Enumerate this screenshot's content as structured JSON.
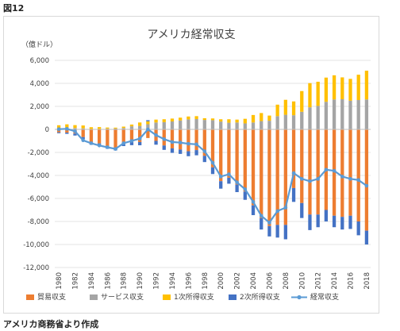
{
  "figure_label": "図12",
  "source_note": "アメリカ商務省より作成",
  "chart_data": {
    "type": "bar",
    "stacked": true,
    "title": "アメリカ経常収支",
    "unit_label": "（億ドル）",
    "xlabel": "",
    "ylabel": "",
    "ylim": [
      -12000,
      6000
    ],
    "yticks": [
      -12000,
      -10000,
      -8000,
      -6000,
      -4000,
      -2000,
      0,
      2000,
      4000,
      6000
    ],
    "ytick_labels": [
      "-12,000",
      "-10,000",
      "-8,000",
      "-6,000",
      "-4,000",
      "-2,000",
      "0",
      "2,000",
      "4,000",
      "6,000"
    ],
    "grid": true,
    "legend_position": "bottom",
    "categories": [
      1980,
      1981,
      1982,
      1983,
      1984,
      1985,
      1986,
      1987,
      1988,
      1989,
      1990,
      1991,
      1992,
      1993,
      1994,
      1995,
      1996,
      1997,
      1998,
      1999,
      2000,
      2001,
      2002,
      2003,
      2004,
      2005,
      2006,
      2007,
      2008,
      2009,
      2010,
      2011,
      2012,
      2013,
      2014,
      2015,
      2016,
      2017,
      2018
    ],
    "x_tick_labels": [
      "1980",
      "1982",
      "1984",
      "1986",
      "1988",
      "1990",
      "1992",
      "1994",
      "1996",
      "1998",
      "2000",
      "2002",
      "2004",
      "2006",
      "2008",
      "2010",
      "2012",
      "2014",
      "2016",
      "2018"
    ],
    "series": [
      {
        "name": "貿易収支",
        "kind": "bar",
        "color": "#ED7D31",
        "values": [
          -255,
          -280,
          -365,
          -670,
          -1125,
          -1220,
          -1450,
          -1600,
          -1200,
          -1100,
          -1100,
          -750,
          -1000,
          -1400,
          -1650,
          -1750,
          -1900,
          -1800,
          -2300,
          -3300,
          -4500,
          -4200,
          -4800,
          -5400,
          -6600,
          -7700,
          -8400,
          -8300,
          -8300,
          -5100,
          -6400,
          -7400,
          -7400,
          -7000,
          -7500,
          -7600,
          -7500,
          -8000,
          -8800
        ]
      },
      {
        "name": "サービス収支",
        "kind": "bar",
        "color": "#A5A5A5",
        "values": [
          60,
          120,
          120,
          90,
          10,
          0,
          60,
          70,
          120,
          270,
          300,
          450,
          600,
          630,
          690,
          770,
          870,
          900,
          820,
          800,
          680,
          580,
          600,
          520,
          600,
          720,
          750,
          1150,
          1270,
          1230,
          1530,
          1920,
          2040,
          2400,
          2600,
          2620,
          2490,
          2550,
          2600
        ]
      },
      {
        "name": "1次所得収支",
        "kind": "bar",
        "color": "#FFC000",
        "values": [
          300,
          320,
          250,
          250,
          180,
          200,
          100,
          80,
          120,
          150,
          300,
          250,
          250,
          250,
          250,
          250,
          250,
          250,
          150,
          150,
          200,
          300,
          250,
          400,
          650,
          700,
          450,
          1000,
          1300,
          1200,
          1800,
          2100,
          2100,
          2100,
          2100,
          1900,
          1900,
          2200,
          2500
        ]
      },
      {
        "name": "2次所得収支",
        "kind": "bar",
        "color": "#4472C4",
        "values": [
          -80,
          -110,
          -170,
          -170,
          -210,
          -220,
          -240,
          -230,
          -250,
          -270,
          -280,
          100,
          -330,
          -380,
          -390,
          -380,
          -430,
          -450,
          -540,
          -580,
          -650,
          -520,
          -650,
          -720,
          -850,
          -1000,
          -900,
          -1100,
          -1250,
          -1200,
          -1300,
          -1350,
          -1100,
          -1000,
          -1000,
          -1100,
          -1150,
          -1200,
          -1200
        ]
      },
      {
        "name": "経常収支",
        "kind": "line",
        "color": "#5B9BD5",
        "values": [
          20,
          50,
          -160,
          -950,
          -1200,
          -1400,
          -1550,
          -1700,
          -1200,
          -1000,
          -800,
          0,
          -500,
          -850,
          -1100,
          -1150,
          -1250,
          -1300,
          -1900,
          -2900,
          -4100,
          -3900,
          -4600,
          -5200,
          -6300,
          -7500,
          -8100,
          -7100,
          -6800,
          -3800,
          -4300,
          -4500,
          -4300,
          -3500,
          -3600,
          -4100,
          -4300,
          -4400,
          -4900
        ]
      }
    ]
  }
}
